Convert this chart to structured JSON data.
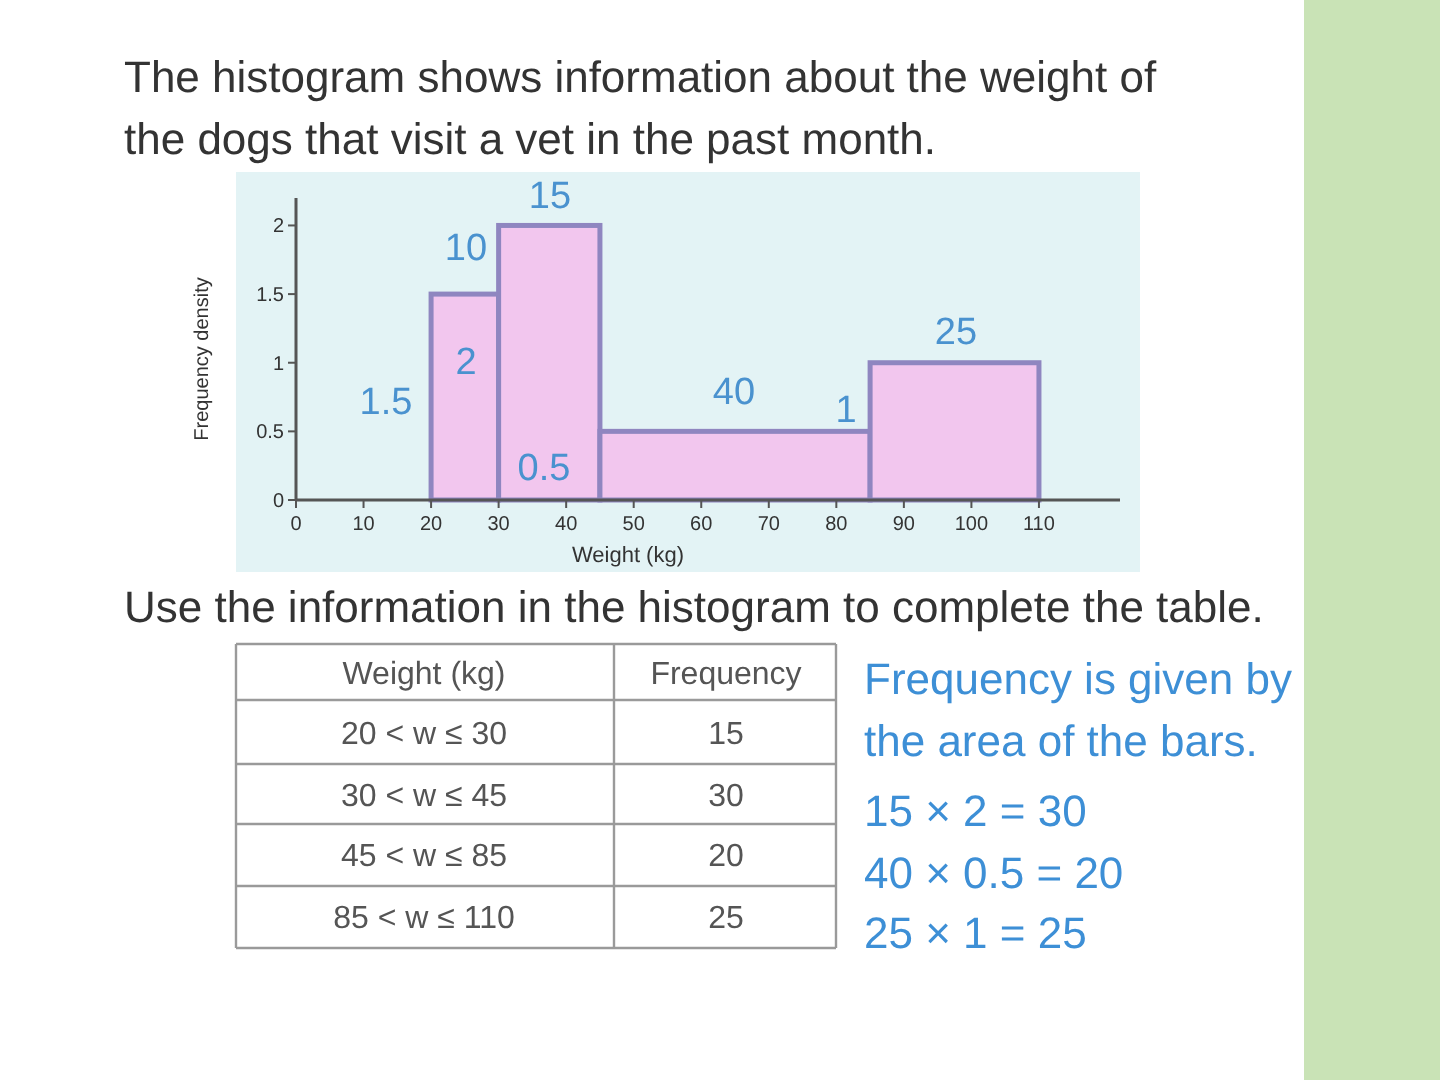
{
  "chart_data": {
    "type": "histogram",
    "title": "The histogram shows information about the weight of the dogs that visit a vet in the past month.",
    "xlabel": "Weight (kg)",
    "ylabel": "Frequency density",
    "bins": [
      20,
      30,
      45,
      85,
      110
    ],
    "values": [
      1.5,
      2,
      0.5,
      1
    ],
    "color": "#f2c6ee",
    "xlim": [
      0,
      122
    ],
    "xticks": [
      0,
      10,
      20,
      30,
      40,
      50,
      60,
      70,
      80,
      90,
      100,
      110
    ],
    "ylim": [
      0,
      2.2
    ],
    "yticks": [
      0,
      0.5,
      1,
      1.5,
      2
    ],
    "annotations": [
      "1.5",
      "10",
      "2",
      "15",
      "0.5",
      "40",
      "1",
      "25",
      "Use the information in the histogram to complete the table.",
      "Weight (kg)",
      "Frequency",
      "20 < w ≤ 30",
      "15",
      "30 < w ≤ 45",
      "30",
      "45 < w ≤ 85",
      "20",
      "85 < w ≤ 110",
      "25",
      "Frequency is given by the area of the bars.",
      "15 × 2 = 30",
      "40 × 0.5 = 20",
      "25 × 1 = 25"
    ]
  }
}
